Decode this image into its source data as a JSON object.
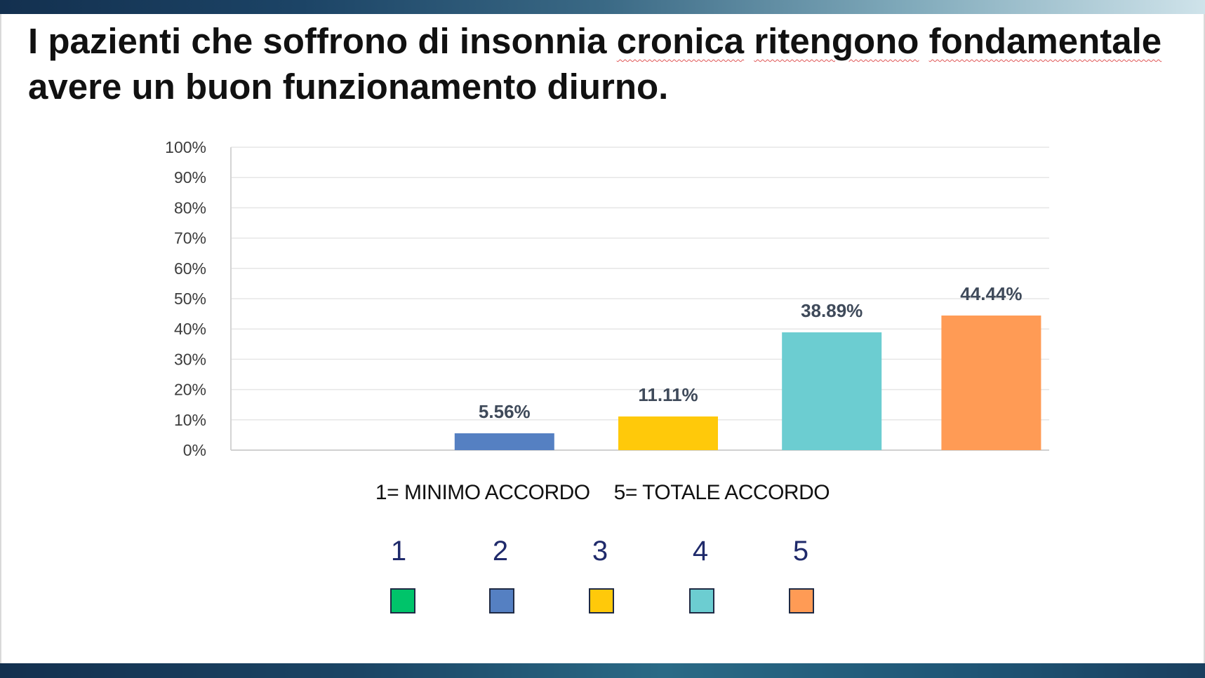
{
  "slide": {
    "title_parts": [
      "I pazienti che soffrono di insonnia ",
      "cronica",
      " ",
      "ritengono",
      " ",
      "fondamentale",
      " avere un buon funzionamento diurno."
    ],
    "scale_note": {
      "min": "1= MINIMO ACCORDO",
      "max": "5= TOTALE ACCORDO"
    },
    "legend": [
      {
        "label": "1",
        "color": "#00c46a"
      },
      {
        "label": "2",
        "color": "#5580c2"
      },
      {
        "label": "3",
        "color": "#ffc90a"
      },
      {
        "label": "4",
        "color": "#6ccdd1"
      },
      {
        "label": "5",
        "color": "#ff9b55"
      }
    ]
  },
  "chart_data": {
    "type": "bar",
    "categories": [
      "1",
      "2",
      "3",
      "4",
      "5"
    ],
    "values": [
      0,
      5.56,
      11.11,
      38.89,
      44.44
    ],
    "data_labels": [
      "",
      "5.56%",
      "11.11%",
      "38.89%",
      "44.44%"
    ],
    "colors": [
      "#00c46a",
      "#5580c2",
      "#ffc90a",
      "#6ccdd1",
      "#ff9b55"
    ],
    "ylim": [
      0,
      100
    ],
    "y_ticks": [
      0,
      10,
      20,
      30,
      40,
      50,
      60,
      70,
      80,
      90,
      100
    ],
    "y_tick_labels": [
      "0%",
      "10%",
      "20%",
      "30%",
      "40%",
      "50%",
      "60%",
      "70%",
      "80%",
      "90%",
      "100%"
    ],
    "grid": true,
    "title": "",
    "xlabel": "",
    "ylabel": ""
  }
}
